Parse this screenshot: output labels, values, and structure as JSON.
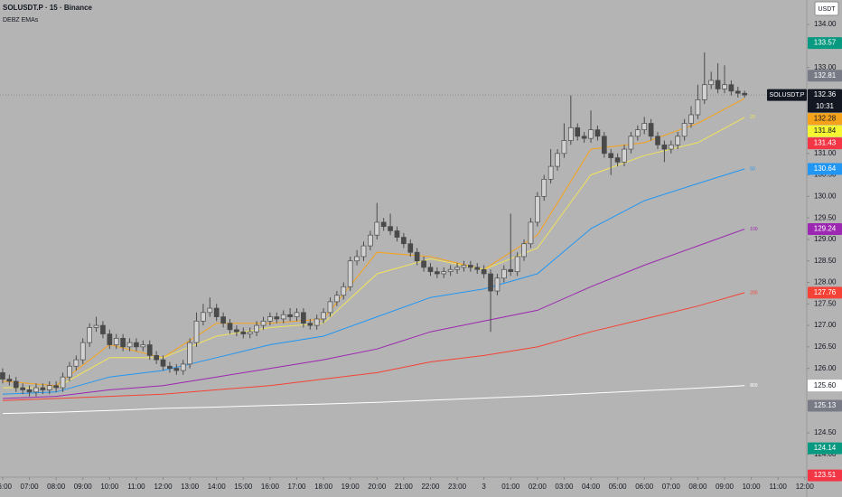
{
  "chart_data": {
    "type": "candlestick",
    "title": "SOLUSDT.P · 15 · Binance",
    "subtitle": "DEBZ EMAs",
    "currency": "USDT",
    "ylim": [
      123.47,
      134.57
    ],
    "yticks": [
      {
        "value": 134,
        "label": "134.00"
      },
      {
        "value": 133,
        "label": "133.00"
      },
      {
        "value": 131,
        "label": "131.00"
      },
      {
        "value": 130.5,
        "label": "130.50"
      },
      {
        "value": 130,
        "label": "130.00"
      },
      {
        "value": 129.5,
        "label": "129.50"
      },
      {
        "value": 129,
        "label": "129.00"
      },
      {
        "value": 128.5,
        "label": "128.50"
      },
      {
        "value": 128,
        "label": "128.00"
      },
      {
        "value": 127.5,
        "label": "127.50"
      },
      {
        "value": 127,
        "label": "127.00"
      },
      {
        "value": 126.5,
        "label": "126.50"
      },
      {
        "value": 126,
        "label": "126.00"
      },
      {
        "value": 124.5,
        "label": "124.50"
      },
      {
        "value": 124,
        "label": "124.00"
      }
    ],
    "xlim": [
      -0.4,
      120.3
    ],
    "xticks": [
      {
        "value": 0,
        "label": "06:00"
      },
      {
        "value": 4,
        "label": "07:00"
      },
      {
        "value": 8,
        "label": "08:00"
      },
      {
        "value": 12,
        "label": "09:00"
      },
      {
        "value": 16,
        "label": "10:00"
      },
      {
        "value": 20,
        "label": "11:00"
      },
      {
        "value": 24,
        "label": "12:00"
      },
      {
        "value": 28,
        "label": "13:00"
      },
      {
        "value": 32,
        "label": "14:00"
      },
      {
        "value": 36,
        "label": "15:00"
      },
      {
        "value": 40,
        "label": "16:00"
      },
      {
        "value": 44,
        "label": "17:00"
      },
      {
        "value": 48,
        "label": "18:00"
      },
      {
        "value": 52,
        "label": "19:00"
      },
      {
        "value": 56,
        "label": "20:00"
      },
      {
        "value": 60,
        "label": "21:00"
      },
      {
        "value": 64,
        "label": "22:00"
      },
      {
        "value": 68,
        "label": "23:00"
      },
      {
        "value": 72,
        "label": "3"
      },
      {
        "value": 76,
        "label": "01:00"
      },
      {
        "value": 80,
        "label": "02:00"
      },
      {
        "value": 84,
        "label": "03:00"
      },
      {
        "value": 88,
        "label": "04:00"
      },
      {
        "value": 92,
        "label": "05:00"
      },
      {
        "value": 96,
        "label": "06:00"
      },
      {
        "value": 100,
        "label": "07:00"
      },
      {
        "value": 104,
        "label": "08:00"
      },
      {
        "value": 108,
        "label": "09:00"
      },
      {
        "value": 112,
        "label": "10:00"
      },
      {
        "value": 116,
        "label": "11:00"
      },
      {
        "value": 120,
        "label": "12:00"
      }
    ],
    "candles": {
      "open": [
        125.9,
        125.75,
        125.7,
        125.55,
        125.5,
        125.45,
        125.55,
        125.5,
        125.6,
        125.55,
        125.8,
        126.05,
        126.2,
        126.6,
        126.95,
        127.0,
        126.8,
        126.55,
        126.7,
        126.5,
        126.6,
        126.5,
        126.55,
        126.3,
        126.2,
        126.05,
        126.0,
        125.95,
        126.1,
        126.6,
        127.1,
        127.3,
        127.4,
        127.2,
        127.05,
        126.9,
        126.85,
        126.8,
        126.85,
        127.0,
        127.1,
        127.2,
        127.15,
        127.25,
        127.2,
        127.3,
        127.05,
        127.0,
        127.15,
        127.3,
        127.55,
        127.7,
        127.9,
        128.5,
        128.6,
        128.85,
        129.1,
        129.4,
        129.3,
        129.2,
        129.05,
        128.9,
        128.7,
        128.5,
        128.35,
        128.25,
        128.2,
        128.25,
        128.3,
        128.35,
        128.4,
        128.35,
        128.3,
        128.2,
        127.8,
        128.1,
        128.3,
        128.25,
        128.6,
        128.9,
        129.4,
        130.0,
        130.4,
        130.7,
        131.0,
        131.3,
        131.6,
        131.4,
        131.35,
        131.55,
        131.4,
        131.0,
        130.9,
        130.8,
        131.1,
        131.4,
        131.55,
        131.7,
        131.4,
        131.2,
        131.1,
        131.2,
        131.4,
        131.7,
        131.9,
        132.25,
        132.6,
        132.7,
        132.5,
        132.6,
        132.45,
        132.4
      ],
      "high": [
        126.0,
        125.85,
        125.8,
        125.65,
        125.6,
        125.65,
        125.65,
        125.7,
        125.7,
        125.9,
        126.15,
        126.3,
        126.7,
        127.05,
        127.2,
        127.1,
        126.9,
        126.8,
        126.8,
        126.7,
        126.7,
        126.65,
        126.65,
        126.4,
        126.3,
        126.15,
        126.1,
        126.2,
        126.7,
        127.3,
        127.5,
        127.65,
        127.5,
        127.3,
        127.15,
        127.0,
        126.95,
        126.95,
        127.1,
        127.2,
        127.3,
        127.3,
        127.35,
        127.4,
        127.4,
        127.4,
        127.15,
        127.25,
        127.4,
        127.65,
        127.8,
        128.0,
        128.6,
        128.75,
        128.95,
        129.2,
        129.85,
        129.5,
        129.6,
        129.3,
        129.15,
        129.0,
        128.8,
        128.6,
        128.45,
        128.35,
        128.35,
        128.4,
        128.45,
        128.5,
        128.5,
        128.45,
        128.4,
        128.3,
        128.2,
        128.4,
        129.6,
        128.7,
        129.0,
        129.5,
        130.1,
        130.5,
        131.1,
        131.1,
        131.7,
        132.35,
        131.7,
        131.5,
        132.0,
        131.65,
        131.5,
        131.1,
        131.0,
        131.2,
        131.5,
        131.65,
        131.85,
        131.8,
        131.5,
        131.3,
        131.3,
        131.5,
        131.8,
        132.1,
        132.6,
        133.35,
        132.9,
        133.1,
        133.05,
        132.7,
        132.55,
        132.46
      ],
      "low": [
        125.65,
        125.6,
        125.45,
        125.4,
        125.35,
        125.35,
        125.4,
        125.4,
        125.45,
        125.45,
        125.7,
        125.95,
        126.1,
        126.5,
        126.85,
        126.7,
        126.45,
        126.45,
        126.4,
        126.4,
        126.4,
        126.4,
        126.2,
        126.1,
        125.95,
        125.9,
        125.85,
        125.85,
        126.0,
        126.5,
        127.0,
        127.2,
        127.1,
        126.95,
        126.8,
        126.75,
        126.7,
        126.7,
        126.75,
        126.9,
        127.0,
        127.05,
        127.05,
        127.1,
        127.1,
        126.95,
        126.9,
        126.9,
        127.05,
        127.2,
        127.45,
        127.6,
        127.8,
        128.4,
        128.5,
        128.75,
        129.0,
        129.2,
        129.1,
        128.95,
        128.8,
        128.6,
        128.4,
        128.25,
        128.15,
        128.1,
        128.1,
        128.15,
        128.2,
        128.25,
        128.25,
        128.2,
        128.1,
        126.85,
        127.7,
        128.0,
        128.15,
        128.15,
        128.5,
        128.8,
        129.3,
        129.9,
        130.3,
        130.6,
        130.9,
        131.2,
        131.3,
        131.25,
        131.25,
        131.3,
        130.9,
        130.5,
        130.7,
        130.7,
        131.0,
        131.3,
        131.45,
        131.3,
        131.1,
        130.8,
        131.0,
        131.1,
        131.3,
        131.6,
        131.8,
        132.15,
        132.5,
        132.4,
        132.4,
        132.35,
        132.3,
        132.3
      ],
      "close": [
        125.75,
        125.7,
        125.55,
        125.5,
        125.45,
        125.55,
        125.5,
        125.6,
        125.55,
        125.8,
        126.05,
        126.2,
        126.6,
        126.95,
        127.0,
        126.8,
        126.55,
        126.7,
        126.5,
        126.6,
        126.5,
        126.55,
        126.3,
        126.2,
        126.05,
        126.0,
        125.95,
        126.1,
        126.6,
        127.1,
        127.3,
        127.4,
        127.2,
        127.05,
        126.9,
        126.85,
        126.8,
        126.85,
        127.0,
        127.1,
        127.2,
        127.15,
        127.25,
        127.2,
        127.3,
        127.05,
        127.0,
        127.15,
        127.3,
        127.55,
        127.7,
        127.9,
        128.5,
        128.6,
        128.85,
        129.1,
        129.4,
        129.3,
        129.2,
        129.05,
        128.9,
        128.7,
        128.5,
        128.35,
        128.25,
        128.2,
        128.25,
        128.3,
        128.35,
        128.4,
        128.35,
        128.3,
        128.2,
        127.8,
        128.1,
        128.3,
        128.25,
        128.6,
        128.9,
        129.4,
        130.0,
        130.4,
        130.7,
        131.0,
        131.3,
        131.6,
        131.4,
        131.35,
        131.55,
        131.4,
        131.0,
        130.9,
        130.8,
        131.1,
        131.4,
        131.55,
        131.7,
        131.4,
        131.2,
        131.1,
        131.2,
        131.4,
        131.7,
        131.9,
        132.25,
        132.6,
        132.7,
        132.5,
        132.6,
        132.45,
        132.4,
        132.36
      ]
    },
    "series": [
      {
        "color": "#f7a21b",
        "x": [
          0,
          8,
          16,
          24,
          32,
          40,
          48,
          56,
          64,
          72,
          80,
          88,
          96,
          104,
          111
        ],
        "values": [
          125.7,
          125.6,
          126.55,
          126.25,
          127.05,
          127.05,
          127.15,
          128.7,
          128.6,
          128.3,
          129.1,
          131.1,
          131.25,
          131.7,
          132.28
        ]
      },
      {
        "name": "20",
        "color": "#f2e35a",
        "x": [
          0,
          8,
          16,
          24,
          32,
          40,
          48,
          56,
          64,
          72,
          80,
          88,
          96,
          104,
          111
        ],
        "values": [
          125.55,
          125.55,
          126.25,
          126.25,
          126.75,
          126.95,
          127.05,
          128.2,
          128.55,
          128.3,
          128.8,
          130.5,
          130.95,
          131.25,
          131.84
        ]
      },
      {
        "name": "50",
        "color": "#2196f3",
        "x": [
          0,
          8,
          16,
          24,
          32,
          40,
          48,
          56,
          64,
          72,
          80,
          88,
          96,
          104,
          111
        ],
        "values": [
          125.4,
          125.45,
          125.8,
          125.95,
          126.25,
          126.55,
          126.75,
          127.2,
          127.65,
          127.85,
          128.2,
          129.25,
          129.9,
          130.3,
          130.64
        ]
      },
      {
        "name": "100",
        "color": "#9c27b0",
        "x": [
          0,
          8,
          16,
          24,
          32,
          40,
          48,
          56,
          64,
          72,
          80,
          88,
          96,
          104,
          111
        ],
        "values": [
          125.3,
          125.35,
          125.5,
          125.6,
          125.8,
          126.0,
          126.2,
          126.45,
          126.85,
          127.1,
          127.35,
          127.9,
          128.4,
          128.85,
          129.24
        ]
      },
      {
        "name": "200",
        "color": "#f44336",
        "x": [
          0,
          8,
          16,
          24,
          32,
          40,
          48,
          56,
          64,
          72,
          80,
          88,
          96,
          104,
          111
        ],
        "values": [
          125.25,
          125.3,
          125.35,
          125.4,
          125.5,
          125.6,
          125.75,
          125.9,
          126.15,
          126.3,
          126.5,
          126.85,
          127.15,
          127.45,
          127.76
        ]
      },
      {
        "name": "800",
        "color": "#ffffff",
        "x": [
          0,
          8,
          16,
          24,
          32,
          40,
          48,
          56,
          64,
          72,
          80,
          88,
          96,
          104,
          111
        ],
        "values": [
          124.95,
          124.98,
          125.02,
          125.07,
          125.1,
          125.14,
          125.17,
          125.21,
          125.26,
          125.31,
          125.36,
          125.42,
          125.48,
          125.54,
          125.6
        ]
      }
    ],
    "last_price": {
      "name": "SOLUSDT.P",
      "value": 132.36,
      "label": "132.36",
      "countdown": "10:31"
    },
    "price_tags": [
      {
        "value": 133.57,
        "label": "133.57",
        "color": "#089981"
      },
      {
        "value": 132.81,
        "label": "132.81",
        "color": "#787b86"
      },
      {
        "value": 132.28,
        "label": "132.28",
        "color": "#f7a21b"
      },
      {
        "value": 131.84,
        "label": "131.84",
        "color": "#f5f531"
      },
      {
        "value": 131.43,
        "label": "131.43",
        "color": "#f23645"
      },
      {
        "value": 130.64,
        "label": "130.64",
        "color": "#2196f3"
      },
      {
        "value": 129.24,
        "label": "129.24",
        "color": "#9c27b0"
      },
      {
        "value": 127.76,
        "label": "127.76",
        "color": "#f44336"
      },
      {
        "value": 125.6,
        "label": "125.60",
        "color": "#ffffff"
      },
      {
        "value": 125.13,
        "label": "125.13",
        "color": "#787b86"
      },
      {
        "value": 124.14,
        "label": "124.14",
        "color": "#089981"
      },
      {
        "value": 123.51,
        "label": "123.51",
        "color": "#f23645"
      }
    ]
  }
}
